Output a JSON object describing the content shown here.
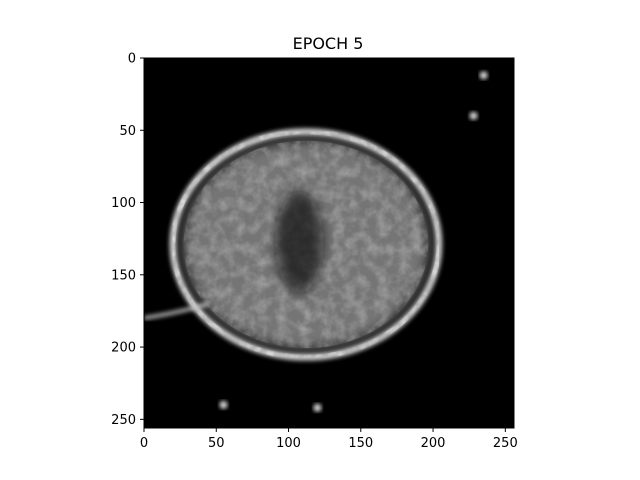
{
  "chart_data": {
    "type": "heatmap",
    "title": "EPOCH 5",
    "xlabel": "",
    "ylabel": "",
    "xlim": [
      0,
      256
    ],
    "ylim": [
      256,
      0
    ],
    "image_size": [
      256,
      256
    ],
    "colormap": "gray",
    "x_ticks": [
      0,
      50,
      100,
      150,
      200,
      250
    ],
    "y_ticks": [
      0,
      50,
      100,
      150,
      200,
      250
    ],
    "x_tick_labels": [
      "0",
      "50",
      "100",
      "150",
      "200",
      "250"
    ],
    "y_tick_labels": [
      "0",
      "50",
      "100",
      "150",
      "200",
      "250"
    ],
    "grid": false,
    "content": "grayscale reconstructed image of an elliptical bright ring with mottled gray interior on a black background",
    "ring": {
      "center": [
        112,
        129
      ],
      "radii": [
        92,
        78
      ]
    },
    "bright_specks": [
      {
        "x": 235,
        "y": 12
      },
      {
        "x": 228,
        "y": 40
      },
      {
        "x": 55,
        "y": 240
      },
      {
        "x": 120,
        "y": 242
      }
    ]
  },
  "colors": {
    "background": "#000000",
    "ring": "#e8e8e8",
    "interior": "#8a8a8a",
    "axis": "#000000"
  }
}
